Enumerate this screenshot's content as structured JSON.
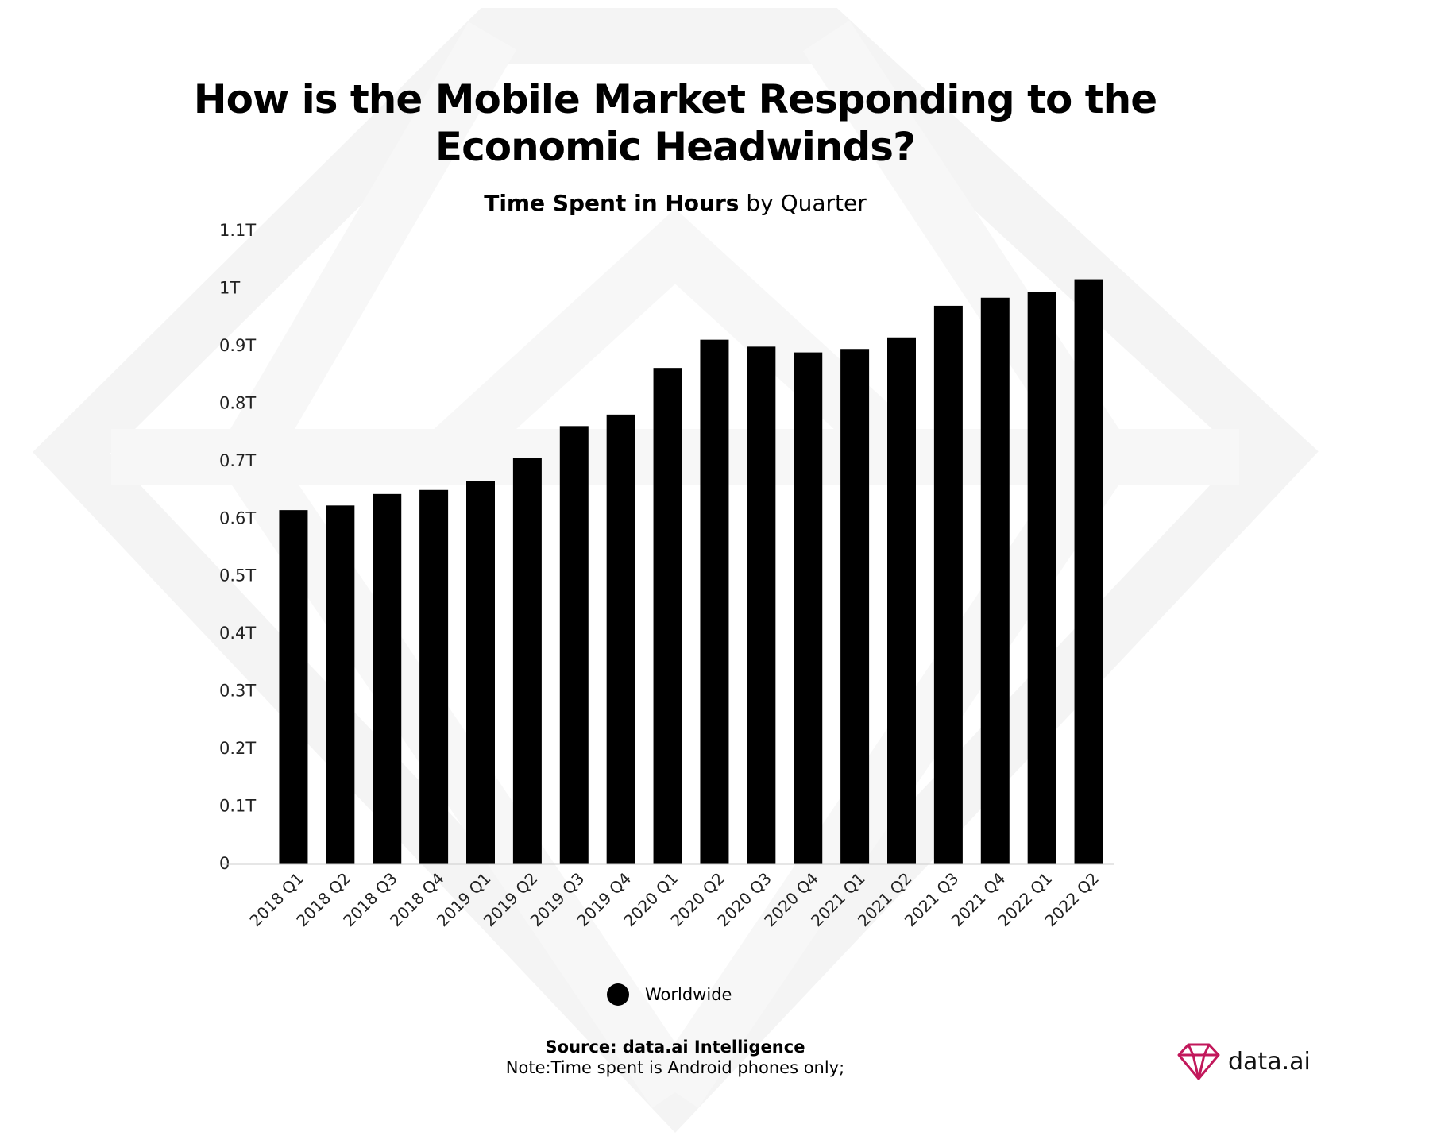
{
  "header": {
    "title": "How is the Mobile Market Responding to the Economic Headwinds?"
  },
  "chart_data": {
    "type": "bar",
    "title_bold": "Time Spent in Hours",
    "title_rest": "by Quarter",
    "categories": [
      "2018 Q1",
      "2018 Q2",
      "2018 Q3",
      "2018 Q4",
      "2019 Q1",
      "2019 Q2",
      "2019 Q3",
      "2019 Q4",
      "2020 Q1",
      "2020 Q2",
      "2020 Q3",
      "2020 Q4",
      "2021 Q1",
      "2021 Q2",
      "2021 Q3",
      "2021 Q4",
      "2022 Q1",
      "2022 Q2"
    ],
    "series": [
      {
        "name": "Worldwide",
        "color": "#000000",
        "values": [
          0.614,
          0.622,
          0.642,
          0.649,
          0.665,
          0.704,
          0.76,
          0.78,
          0.861,
          0.91,
          0.898,
          0.888,
          0.894,
          0.914,
          0.969,
          0.983,
          0.993,
          1.015
        ]
      }
    ],
    "yticks": [
      0,
      0.1,
      0.2,
      0.3,
      0.4,
      0.5,
      0.6,
      0.7,
      0.8,
      0.9,
      1.0,
      1.1
    ],
    "ytick_labels": [
      "0",
      "0.1T",
      "0.2T",
      "0.3T",
      "0.4T",
      "0.5T",
      "0.6T",
      "0.7T",
      "0.8T",
      "0.9T",
      "1T",
      "1.1T"
    ],
    "ylim": [
      0,
      1.1
    ],
    "unit": "T",
    "xlabel": "",
    "ylabel": "",
    "grid": false,
    "legend_position": "bottom"
  },
  "footer": {
    "source": "Source: data.ai Intelligence",
    "note": "Note:Time spent is Android phones only;"
  },
  "logo": {
    "text": "data.ai",
    "icon": "diamond-icon",
    "accent_color": "#c2185b"
  }
}
